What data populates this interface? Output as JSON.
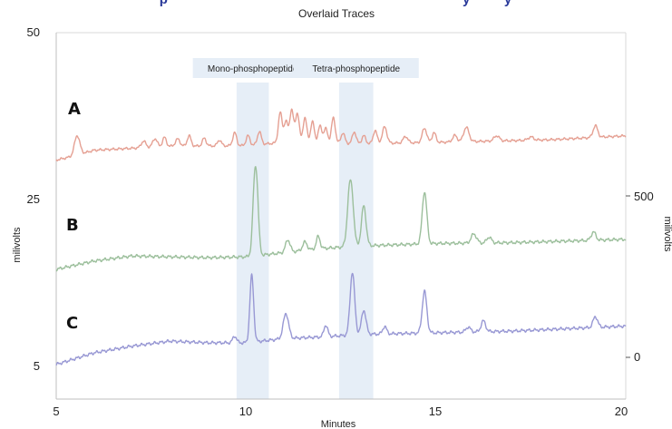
{
  "chart_data": {
    "type": "line",
    "title": "Overlaid Traces",
    "top_cut_text": "p                                                                              y         y",
    "xlabel": "Minutes",
    "ylabel_left": "milivolts",
    "ylabel_right": "milivolts",
    "x_ticks": [
      "5",
      "10",
      "15",
      "20"
    ],
    "y_ticks_left": [
      "50",
      "25",
      "5"
    ],
    "y_ticks_right": [
      "500",
      "0"
    ],
    "xlim": [
      5,
      20
    ],
    "regions": [
      {
        "label": "Mono-phosphopeptide",
        "x_start": 9.75,
        "x_end": 10.6
      },
      {
        "label": "Tetra-phosphopeptide",
        "x_start": 12.45,
        "x_end": 13.35
      }
    ],
    "series": [
      {
        "name": "A",
        "color": "#e5a093",
        "baseline": [
          [
            5,
            30.5
          ],
          [
            5.4,
            31
          ],
          [
            6,
            32
          ],
          [
            8,
            32.6
          ],
          [
            10,
            32.7
          ],
          [
            11,
            33.2
          ],
          [
            13,
            33
          ],
          [
            15,
            33.2
          ],
          [
            18,
            33.6
          ],
          [
            20,
            34.2
          ]
        ],
        "peaks": [
          [
            5.55,
            3.0,
            0.07
          ],
          [
            7.3,
            1.0,
            0.06
          ],
          [
            7.6,
            1.3,
            0.06
          ],
          [
            7.85,
            1.4,
            0.05
          ],
          [
            8.2,
            1.1,
            0.06
          ],
          [
            8.5,
            1.6,
            0.05
          ],
          [
            8.9,
            1.2,
            0.05
          ],
          [
            9.3,
            0.9,
            0.05
          ],
          [
            9.7,
            2.0,
            0.05
          ],
          [
            10.05,
            1.5,
            0.05
          ],
          [
            10.35,
            2.0,
            0.05
          ],
          [
            10.9,
            4.6,
            0.05
          ],
          [
            11.05,
            3.2,
            0.05
          ],
          [
            11.2,
            5.0,
            0.05
          ],
          [
            11.35,
            4.5,
            0.05
          ],
          [
            11.55,
            3.8,
            0.05
          ],
          [
            11.75,
            3.2,
            0.05
          ],
          [
            11.95,
            2.6,
            0.05
          ],
          [
            12.1,
            2.2,
            0.05
          ],
          [
            12.3,
            3.9,
            0.05
          ],
          [
            12.55,
            1.6,
            0.05
          ],
          [
            12.85,
            1.8,
            0.05
          ],
          [
            13.1,
            1.2,
            0.05
          ],
          [
            13.4,
            2.0,
            0.05
          ],
          [
            13.65,
            2.5,
            0.06
          ],
          [
            14.2,
            1.0,
            0.06
          ],
          [
            14.7,
            2.2,
            0.06
          ],
          [
            14.95,
            1.5,
            0.05
          ],
          [
            15.5,
            1.0,
            0.06
          ],
          [
            15.8,
            2.2,
            0.07
          ],
          [
            16.6,
            0.8,
            0.07
          ],
          [
            17.5,
            0.5,
            0.07
          ],
          [
            19.2,
            1.8,
            0.06
          ]
        ]
      },
      {
        "name": "B",
        "color": "#9cbf9c",
        "baseline": [
          [
            5,
            16.2
          ],
          [
            6,
            17.2
          ],
          [
            7,
            17.8
          ],
          [
            8,
            17.7
          ],
          [
            9,
            17.6
          ],
          [
            10,
            17.7
          ],
          [
            11,
            18.2
          ],
          [
            12,
            18.7
          ],
          [
            13,
            19
          ],
          [
            15,
            19.3
          ],
          [
            17,
            19.4
          ],
          [
            20,
            19.8
          ]
        ],
        "peaks": [
          [
            10.25,
            11.8,
            0.06
          ],
          [
            11.1,
            1.5,
            0.06
          ],
          [
            11.55,
            1.0,
            0.06
          ],
          [
            11.9,
            1.5,
            0.05
          ],
          [
            12.75,
            8.5,
            0.07
          ],
          [
            13.1,
            4.8,
            0.06
          ],
          [
            14.7,
            6.3,
            0.06
          ],
          [
            16,
            1.1,
            0.07
          ],
          [
            16.4,
            0.7,
            0.06
          ],
          [
            19.15,
            1.0,
            0.06
          ]
        ]
      },
      {
        "name": "C",
        "color": "#9898d4",
        "baseline": [
          [
            5,
            4.8
          ],
          [
            6,
            6.2
          ],
          [
            7,
            7
          ],
          [
            8,
            7.6
          ],
          [
            9,
            7.4
          ],
          [
            10,
            7.4
          ],
          [
            11,
            7.9
          ],
          [
            12,
            8.1
          ],
          [
            13,
            8.4
          ],
          [
            15,
            8.6
          ],
          [
            17,
            8.8
          ],
          [
            20,
            9.4
          ]
        ],
        "peaks": [
          [
            9.7,
            0.8,
            0.05
          ],
          [
            10.15,
            8.0,
            0.05
          ],
          [
            11.05,
            3.0,
            0.07
          ],
          [
            12.1,
            1.4,
            0.05
          ],
          [
            12.8,
            7.5,
            0.06
          ],
          [
            13.1,
            2.9,
            0.06
          ],
          [
            13.65,
            0.9,
            0.05
          ],
          [
            14.7,
            5.0,
            0.06
          ],
          [
            15.85,
            0.6,
            0.06
          ],
          [
            16.25,
            1.3,
            0.06
          ],
          [
            19.2,
            1.3,
            0.06
          ]
        ]
      }
    ]
  }
}
